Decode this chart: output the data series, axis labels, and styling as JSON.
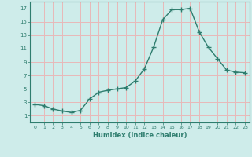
{
  "x": [
    0,
    1,
    2,
    3,
    4,
    5,
    6,
    7,
    8,
    9,
    10,
    11,
    12,
    13,
    14,
    15,
    16,
    17,
    18,
    19,
    20,
    21,
    22,
    23
  ],
  "y": [
    2.7,
    2.5,
    2.0,
    1.7,
    1.5,
    1.8,
    3.5,
    4.5,
    4.8,
    5.0,
    5.2,
    6.2,
    8.0,
    11.2,
    15.3,
    16.8,
    16.8,
    17.0,
    13.5,
    11.2,
    9.5,
    7.8,
    7.5,
    7.4
  ],
  "xlabel": "Humidex (Indice chaleur)",
  "bg_color": "#ceecea",
  "grid_color": "#e8b8b8",
  "line_color": "#2e7d6e",
  "xlim": [
    -0.5,
    23.5
  ],
  "ylim": [
    0,
    18
  ],
  "yticks": [
    1,
    3,
    5,
    7,
    9,
    11,
    13,
    15,
    17
  ],
  "xticks": [
    0,
    1,
    2,
    3,
    4,
    5,
    6,
    7,
    8,
    9,
    10,
    11,
    12,
    13,
    14,
    15,
    16,
    17,
    18,
    19,
    20,
    21,
    22,
    23
  ]
}
